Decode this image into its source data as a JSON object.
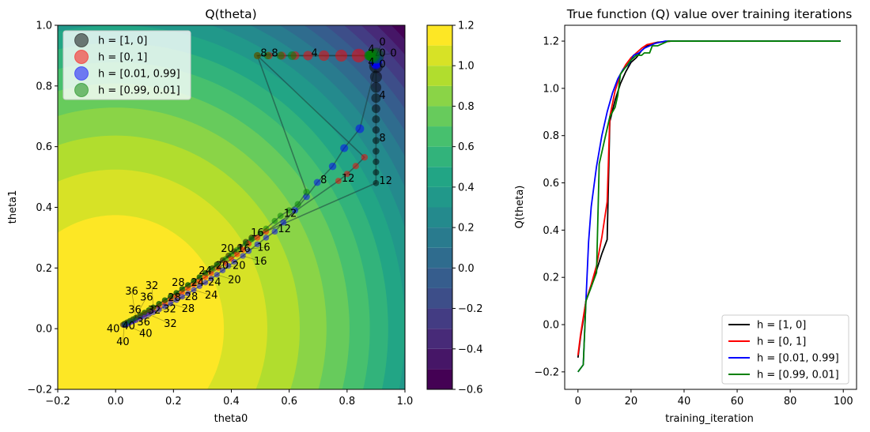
{
  "chart_data": [
    {
      "type": "contour+scatter",
      "title": "Q(theta)",
      "xlabel": "theta0",
      "ylabel": "theta1",
      "xlim": [
        -0.2,
        1.0
      ],
      "ylim": [
        -0.2,
        1.0
      ],
      "xticks": [
        "−0.2",
        "0.0",
        "0.2",
        "0.4",
        "0.6",
        "0.8",
        "1.0"
      ],
      "yticks": [
        "−0.2",
        "0.0",
        "0.2",
        "0.4",
        "0.6",
        "0.8",
        "1.0"
      ],
      "colormap": "viridis",
      "contour_levels": {
        "min": -0.6,
        "max": 1.2,
        "step": 0.1
      },
      "contour_center": [
        0.0,
        0.0
      ],
      "colorbar_ticks": [
        "−0.6",
        "−0.4",
        "−0.2",
        "0.0",
        "0.2",
        "0.4",
        "0.6",
        "0.8",
        "1.0",
        "1.2"
      ],
      "label_every": 4,
      "legend_position": "upper-left",
      "series": [
        {
          "name": "h = [1, 0]",
          "color": "#000000",
          "points": [
            [
              0.9,
              0.9
            ],
            [
              0.9,
              0.865
            ],
            [
              0.9,
              0.83
            ],
            [
              0.9,
              0.795
            ],
            [
              0.9,
              0.76
            ],
            [
              0.9,
              0.725
            ],
            [
              0.9,
              0.69
            ],
            [
              0.9,
              0.655
            ],
            [
              0.9,
              0.62
            ],
            [
              0.9,
              0.585
            ],
            [
              0.9,
              0.55
            ],
            [
              0.9,
              0.515
            ],
            [
              0.9,
              0.48
            ],
            [
              0.47,
              0.3
            ],
            [
              0.45,
              0.286
            ],
            [
              0.43,
              0.27
            ],
            [
              0.41,
              0.255
            ],
            [
              0.39,
              0.241
            ],
            [
              0.37,
              0.226
            ],
            [
              0.35,
              0.212
            ],
            [
              0.335,
              0.2
            ],
            [
              0.31,
              0.184
            ],
            [
              0.29,
              0.17
            ],
            [
              0.27,
              0.157
            ],
            [
              0.25,
              0.144
            ],
            [
              0.23,
              0.131
            ],
            [
              0.21,
              0.118
            ],
            [
              0.19,
              0.106
            ],
            [
              0.17,
              0.094
            ],
            [
              0.15,
              0.082
            ],
            [
              0.13,
              0.07
            ],
            [
              0.115,
              0.061
            ],
            [
              0.1,
              0.053
            ],
            [
              0.085,
              0.045
            ],
            [
              0.07,
              0.036
            ],
            [
              0.06,
              0.031
            ],
            [
              0.05,
              0.026
            ],
            [
              0.04,
              0.021
            ],
            [
              0.035,
              0.018
            ],
            [
              0.03,
              0.016
            ],
            [
              0.025,
              0.013
            ]
          ]
        },
        {
          "name": "h = [0, 1]",
          "color": "#ff0000",
          "points": [
            [
              0.9,
              0.9
            ],
            [
              0.84,
              0.9
            ],
            [
              0.78,
              0.9
            ],
            [
              0.72,
              0.9
            ],
            [
              0.665,
              0.9
            ],
            [
              0.62,
              0.9
            ],
            [
              0.575,
              0.9
            ],
            [
              0.53,
              0.9
            ],
            [
              0.49,
              0.9
            ],
            [
              0.86,
              0.565
            ],
            [
              0.83,
              0.536
            ],
            [
              0.8,
              0.51
            ],
            [
              0.77,
              0.487
            ],
            [
              0.52,
              0.32
            ],
            [
              0.49,
              0.3
            ],
            [
              0.46,
              0.28
            ],
            [
              0.44,
              0.26
            ],
            [
              0.42,
              0.245
            ],
            [
              0.4,
              0.23
            ],
            [
              0.38,
              0.216
            ],
            [
              0.355,
              0.2
            ],
            [
              0.33,
              0.183
            ],
            [
              0.31,
              0.17
            ],
            [
              0.29,
              0.157
            ],
            [
              0.27,
              0.145
            ],
            [
              0.25,
              0.133
            ],
            [
              0.23,
              0.12
            ],
            [
              0.21,
              0.108
            ],
            [
              0.19,
              0.097
            ],
            [
              0.17,
              0.085
            ],
            [
              0.15,
              0.074
            ],
            [
              0.13,
              0.064
            ],
            [
              0.115,
              0.056
            ],
            [
              0.1,
              0.048
            ],
            [
              0.085,
              0.04
            ],
            [
              0.07,
              0.033
            ],
            [
              0.06,
              0.028
            ],
            [
              0.05,
              0.023
            ],
            [
              0.04,
              0.019
            ],
            [
              0.035,
              0.016
            ],
            [
              0.03,
              0.014
            ]
          ]
        },
        {
          "name": "h = [0.01, 0.99]",
          "color": "#0000ff",
          "points": [
            [
              0.9,
              0.9
            ],
            [
              0.9,
              0.89
            ],
            [
              0.9,
              0.88
            ],
            [
              0.9,
              0.875
            ],
            [
              0.9,
              0.87
            ],
            [
              0.844,
              0.659
            ],
            [
              0.79,
              0.595
            ],
            [
              0.75,
              0.535
            ],
            [
              0.697,
              0.482
            ],
            [
              0.66,
              0.435
            ],
            [
              0.62,
              0.39
            ],
            [
              0.58,
              0.35
            ],
            [
              0.55,
              0.32
            ],
            [
              0.52,
              0.3
            ],
            [
              0.49,
              0.278
            ],
            [
              0.46,
              0.256
            ],
            [
              0.44,
              0.24
            ],
            [
              0.41,
              0.22
            ],
            [
              0.39,
              0.207
            ],
            [
              0.37,
              0.192
            ],
            [
              0.35,
              0.178
            ],
            [
              0.33,
              0.165
            ],
            [
              0.31,
              0.152
            ],
            [
              0.29,
              0.14
            ],
            [
              0.27,
              0.128
            ],
            [
              0.25,
              0.116
            ],
            [
              0.23,
              0.105
            ],
            [
              0.21,
              0.094
            ],
            [
              0.19,
              0.083
            ],
            [
              0.17,
              0.073
            ],
            [
              0.15,
              0.063
            ],
            [
              0.13,
              0.054
            ],
            [
              0.115,
              0.047
            ],
            [
              0.1,
              0.04
            ],
            [
              0.085,
              0.034
            ],
            [
              0.07,
              0.028
            ],
            [
              0.06,
              0.024
            ],
            [
              0.05,
              0.02
            ],
            [
              0.04,
              0.016
            ],
            [
              0.035,
              0.014
            ],
            [
              0.03,
              0.012
            ]
          ]
        },
        {
          "name": "h = [0.99, 0.01]",
          "color": "#008000",
          "points": [
            [
              0.9,
              0.9
            ],
            [
              0.89,
              0.9
            ],
            [
              0.885,
              0.9
            ],
            [
              0.88,
              0.9
            ],
            [
              0.875,
              0.9
            ],
            [
              0.61,
              0.9
            ],
            [
              0.57,
              0.9
            ],
            [
              0.525,
              0.9
            ],
            [
              0.49,
              0.9
            ],
            [
              0.66,
              0.45
            ],
            [
              0.63,
              0.41
            ],
            [
              0.6,
              0.39
            ],
            [
              0.57,
              0.372
            ],
            [
              0.55,
              0.355
            ],
            [
              0.52,
              0.33
            ],
            [
              0.5,
              0.315
            ],
            [
              0.47,
              0.295
            ],
            [
              0.45,
              0.28
            ],
            [
              0.42,
              0.26
            ],
            [
              0.4,
              0.245
            ],
            [
              0.38,
              0.23
            ],
            [
              0.35,
              0.21
            ],
            [
              0.33,
              0.197
            ],
            [
              0.31,
              0.183
            ],
            [
              0.29,
              0.17
            ],
            [
              0.27,
              0.157
            ],
            [
              0.25,
              0.144
            ],
            [
              0.23,
              0.131
            ],
            [
              0.21,
              0.118
            ],
            [
              0.19,
              0.106
            ],
            [
              0.17,
              0.094
            ],
            [
              0.15,
              0.082
            ],
            [
              0.13,
              0.07
            ],
            [
              0.115,
              0.061
            ],
            [
              0.1,
              0.053
            ],
            [
              0.085,
              0.045
            ],
            [
              0.07,
              0.036
            ],
            [
              0.06,
              0.031
            ],
            [
              0.05,
              0.026
            ],
            [
              0.04,
              0.021
            ],
            [
              0.03,
              0.016
            ]
          ]
        }
      ]
    },
    {
      "type": "line",
      "title": "True function (Q) value over training iterations",
      "xlabel": "training_iteration",
      "ylabel": "Q(theta)",
      "xlim": [
        -5,
        105
      ],
      "ylim": [
        -0.274,
        1.267
      ],
      "xticks": [
        0,
        20,
        40,
        60,
        80,
        100
      ],
      "yticks": [
        "−0.2",
        "0.0",
        "0.2",
        "0.4",
        "0.6",
        "0.8",
        "1.0",
        "1.2"
      ],
      "legend_position": "lower-right",
      "series": [
        {
          "name": "h = [1, 0]",
          "color": "#000000",
          "points": [
            [
              0,
              -0.14
            ],
            [
              1,
              -0.05
            ],
            [
              2,
              0.02
            ],
            [
              3,
              0.1
            ],
            [
              5,
              0.16
            ],
            [
              7,
              0.23
            ],
            [
              9,
              0.3
            ],
            [
              11,
              0.36
            ],
            [
              12,
              0.86
            ],
            [
              14,
              0.95
            ],
            [
              16,
              1.02
            ],
            [
              18,
              1.07
            ],
            [
              20,
              1.11
            ],
            [
              22,
              1.13
            ],
            [
              24,
              1.16
            ],
            [
              26,
              1.18
            ],
            [
              28,
              1.19
            ],
            [
              30,
              1.195
            ],
            [
              35,
              1.2
            ],
            [
              99,
              1.2
            ]
          ]
        },
        {
          "name": "h = [0, 1]",
          "color": "#ff0000",
          "points": [
            [
              0,
              -0.13
            ],
            [
              1,
              -0.04
            ],
            [
              2,
              0.03
            ],
            [
              3,
              0.1
            ],
            [
              5,
              0.17
            ],
            [
              7,
              0.25
            ],
            [
              9,
              0.37
            ],
            [
              11,
              0.52
            ],
            [
              12,
              0.88
            ],
            [
              14,
              0.99
            ],
            [
              16,
              1.06
            ],
            [
              18,
              1.1
            ],
            [
              20,
              1.13
            ],
            [
              22,
              1.15
            ],
            [
              24,
              1.17
            ],
            [
              26,
              1.185
            ],
            [
              28,
              1.19
            ],
            [
              31,
              1.195
            ],
            [
              35,
              1.2
            ],
            [
              99,
              1.2
            ]
          ]
        },
        {
          "name": "h = [0.01, 0.99]",
          "color": "#0000ff",
          "points": [
            [
              0,
              -0.2
            ],
            [
              2,
              -0.17
            ],
            [
              3,
              0.1
            ],
            [
              4,
              0.35
            ],
            [
              5,
              0.5
            ],
            [
              7,
              0.67
            ],
            [
              9,
              0.8
            ],
            [
              11,
              0.9
            ],
            [
              13,
              0.98
            ],
            [
              15,
              1.04
            ],
            [
              17,
              1.08
            ],
            [
              19,
              1.1
            ],
            [
              21,
              1.14
            ],
            [
              23,
              1.15
            ],
            [
              25,
              1.17
            ],
            [
              27,
              1.18
            ],
            [
              29,
              1.19
            ],
            [
              33,
              1.2
            ],
            [
              99,
              1.2
            ]
          ]
        },
        {
          "name": "h = [0.99, 0.01]",
          "color": "#008000",
          "points": [
            [
              0,
              -0.2
            ],
            [
              2,
              -0.17
            ],
            [
              3,
              0.1
            ],
            [
              5,
              0.16
            ],
            [
              7,
              0.22
            ],
            [
              8,
              0.68
            ],
            [
              10,
              0.78
            ],
            [
              12,
              0.88
            ],
            [
              14,
              0.92
            ],
            [
              15,
              0.97
            ],
            [
              16,
              1.06
            ],
            [
              18,
              1.09
            ],
            [
              20,
              1.12
            ],
            [
              22,
              1.14
            ],
            [
              24,
              1.14
            ],
            [
              25,
              1.15
            ],
            [
              27,
              1.15
            ],
            [
              28,
              1.18
            ],
            [
              30,
              1.18
            ],
            [
              32,
              1.19
            ],
            [
              34,
              1.2
            ],
            [
              99,
              1.2
            ]
          ]
        }
      ]
    }
  ]
}
